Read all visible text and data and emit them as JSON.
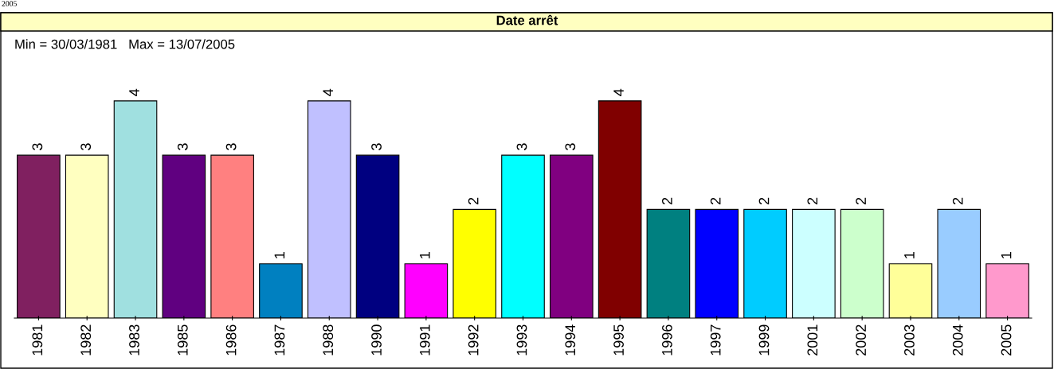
{
  "chart_data": {
    "type": "bar",
    "title": "Date arrêt",
    "subtitle": "Min = 30/03/1981   Max = 13/07/2005",
    "annotations": [
      "2005"
    ],
    "categories": [
      "1981",
      "1982",
      "1983",
      "1985",
      "1986",
      "1987",
      "1988",
      "1990",
      "1991",
      "1992",
      "1993",
      "1994",
      "1995",
      "1996",
      "1997",
      "1999",
      "2001",
      "2002",
      "2003",
      "2004",
      "2005"
    ],
    "values": [
      3,
      3,
      4,
      3,
      3,
      1,
      4,
      3,
      1,
      2,
      3,
      3,
      4,
      2,
      2,
      2,
      2,
      2,
      1,
      2,
      1
    ],
    "colors": [
      "#802060",
      "#ffffc0",
      "#a0e0e0",
      "#600080",
      "#ff8080",
      "#0080c0",
      "#c0c0ff",
      "#000080",
      "#ff00ff",
      "#ffff00",
      "#00ffff",
      "#800080",
      "#800000",
      "#008080",
      "#0000ff",
      "#00ccff",
      "#ccffff",
      "#ccffcc",
      "#ffff99",
      "#99ccff",
      "#ff99cc"
    ],
    "data_labels": true,
    "tick_labels": "x",
    "grid": false
  }
}
